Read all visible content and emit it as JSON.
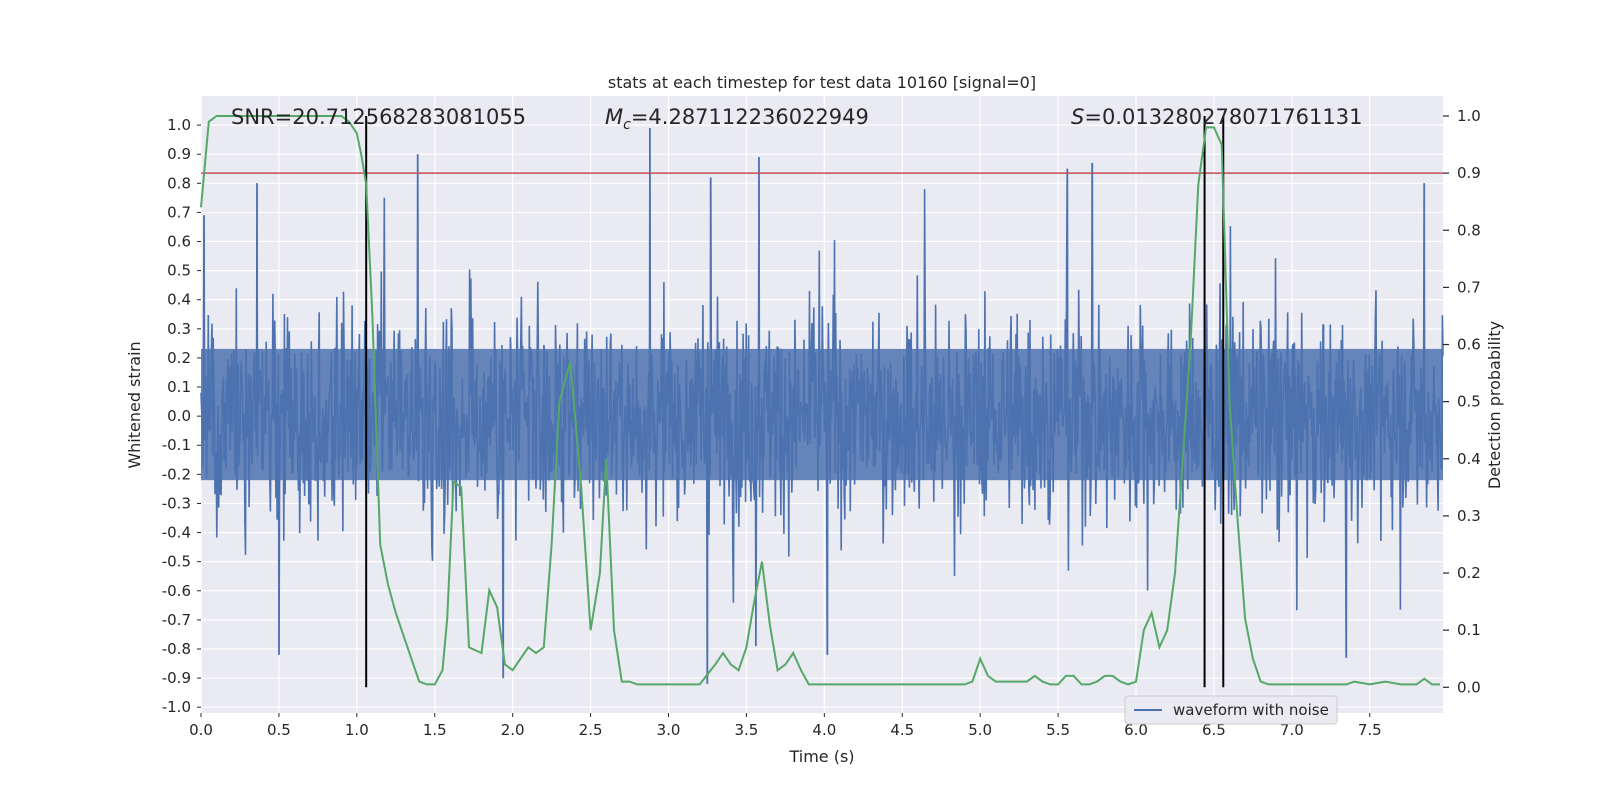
{
  "chart_data": {
    "type": "line",
    "title": "stats at each timestep for test data 10160 [signal=0]",
    "xlabel": "Time (s)",
    "ylabel": "Whitened strain",
    "y2label": "Detection probability",
    "xlim": [
      0.0,
      7.97
    ],
    "ylim": [
      -1.02,
      1.1
    ],
    "y2lim": [
      -0.045,
      1.035
    ],
    "x_ticks": [
      0.0,
      0.5,
      1.0,
      1.5,
      2.0,
      2.5,
      3.0,
      3.5,
      4.0,
      4.5,
      5.0,
      5.5,
      6.0,
      6.5,
      7.0,
      7.5
    ],
    "x_tick_labels": [
      "0.0",
      "0.5",
      "1.0",
      "1.5",
      "2.0",
      "2.5",
      "3.0",
      "3.5",
      "4.0",
      "4.5",
      "5.0",
      "5.5",
      "6.0",
      "6.5",
      "7.0",
      "7.5"
    ],
    "y_ticks": [
      1.0,
      0.9,
      0.8,
      0.7,
      0.6,
      0.5,
      0.4,
      0.3,
      0.2,
      0.1,
      0.0,
      -0.1,
      -0.2,
      -0.3,
      -0.4,
      -0.5,
      -0.6,
      -0.7,
      -0.8,
      -0.9,
      -1.0
    ],
    "y_tick_labels": [
      "1.0",
      "0.9",
      "0.8",
      "0.7",
      "0.6",
      "0.5",
      "0.4",
      "0.3",
      "0.2",
      "0.1",
      "0.0",
      "-0.1",
      "-0.2",
      "-0.3",
      "-0.4",
      "-0.5",
      "-0.6",
      "-0.7",
      "-0.8",
      "-0.9",
      "-1.0"
    ],
    "y2_ticks": [
      1.0,
      0.9,
      0.8,
      0.7,
      0.6,
      0.5,
      0.4,
      0.3,
      0.2,
      0.1,
      0.0
    ],
    "y2_tick_labels": [
      "1.0",
      "0.9",
      "0.8",
      "0.7",
      "0.6",
      "0.5",
      "0.4",
      "0.3",
      "0.2",
      "0.1",
      "0.0"
    ],
    "grid": true,
    "legend": {
      "placement": "lower-right",
      "entries": [
        "waveform with noise"
      ]
    },
    "annotations": {
      "snr": "SNR=20.712568283081055",
      "mc_prefix": "M",
      "mc_sub": "c",
      "mc_value": "=4.287112236022949",
      "s_prefix": "S",
      "s_value": "=0.013280278071761131"
    },
    "threshold": {
      "y2": 0.9,
      "color": "#c44e52"
    },
    "vertical_lines": [
      1.06,
      6.44,
      6.56
    ],
    "vertical_line_range_y2": [
      0.0,
      1.0
    ],
    "series": [
      {
        "name": "waveform with noise",
        "axis": "left",
        "color": "#4c72b0",
        "typical_envelope": [
          -0.4,
          0.42
        ],
        "note_peaks": [
          [
            0.02,
            0.69
          ],
          [
            0.36,
            0.8
          ],
          [
            1.39,
            0.9
          ],
          [
            2.88,
            0.99
          ],
          [
            3.27,
            0.82
          ],
          [
            3.58,
            0.89
          ],
          [
            5.56,
            0.85
          ],
          [
            5.72,
            0.87
          ],
          [
            7.85,
            0.8
          ],
          [
            0.5,
            -0.82
          ],
          [
            1.94,
            -0.9
          ],
          [
            3.25,
            -0.92
          ],
          [
            3.56,
            -0.79
          ],
          [
            4.02,
            -0.82
          ],
          [
            7.35,
            -0.83
          ]
        ]
      },
      {
        "name": "Detection probability",
        "axis": "right",
        "color": "#55a868",
        "x": [
          0.0,
          0.05,
          0.1,
          0.2,
          0.3,
          0.4,
          0.5,
          0.6,
          0.7,
          0.8,
          0.9,
          0.95,
          1.0,
          1.03,
          1.06,
          1.1,
          1.15,
          1.2,
          1.25,
          1.3,
          1.35,
          1.4,
          1.45,
          1.5,
          1.55,
          1.58,
          1.62,
          1.67,
          1.72,
          1.8,
          1.85,
          1.9,
          1.95,
          2.0,
          2.05,
          2.1,
          2.15,
          2.2,
          2.25,
          2.3,
          2.37,
          2.44,
          2.5,
          2.56,
          2.6,
          2.65,
          2.7,
          2.75,
          2.8,
          2.9,
          3.0,
          3.1,
          3.2,
          3.3,
          3.35,
          3.4,
          3.45,
          3.5,
          3.55,
          3.6,
          3.65,
          3.7,
          3.75,
          3.8,
          3.85,
          3.9,
          4.0,
          4.1,
          4.2,
          4.3,
          4.4,
          4.5,
          4.6,
          4.7,
          4.8,
          4.9,
          4.95,
          5.0,
          5.05,
          5.1,
          5.2,
          5.3,
          5.35,
          5.4,
          5.45,
          5.5,
          5.55,
          5.6,
          5.65,
          5.7,
          5.75,
          5.8,
          5.85,
          5.9,
          5.95,
          6.0,
          6.05,
          6.1,
          6.15,
          6.2,
          6.25,
          6.3,
          6.35,
          6.4,
          6.45,
          6.5,
          6.55,
          6.6,
          6.65,
          6.7,
          6.75,
          6.8,
          6.85,
          6.9,
          7.0,
          7.1,
          7.2,
          7.3,
          7.35,
          7.4,
          7.5,
          7.6,
          7.7,
          7.75,
          7.8,
          7.85,
          7.9,
          7.95
        ],
        "values": [
          0.84,
          0.99,
          1.0,
          1.0,
          1.0,
          1.0,
          1.0,
          1.0,
          1.0,
          1.0,
          1.0,
          0.99,
          0.97,
          0.93,
          0.88,
          0.65,
          0.25,
          0.18,
          0.13,
          0.09,
          0.05,
          0.01,
          0.005,
          0.005,
          0.03,
          0.12,
          0.36,
          0.35,
          0.07,
          0.06,
          0.17,
          0.14,
          0.04,
          0.03,
          0.05,
          0.07,
          0.06,
          0.07,
          0.25,
          0.5,
          0.57,
          0.35,
          0.1,
          0.2,
          0.4,
          0.1,
          0.01,
          0.01,
          0.005,
          0.005,
          0.005,
          0.005,
          0.005,
          0.04,
          0.06,
          0.04,
          0.03,
          0.07,
          0.15,
          0.22,
          0.11,
          0.03,
          0.04,
          0.06,
          0.03,
          0.005,
          0.005,
          0.005,
          0.005,
          0.005,
          0.005,
          0.005,
          0.005,
          0.005,
          0.005,
          0.005,
          0.01,
          0.05,
          0.02,
          0.01,
          0.01,
          0.01,
          0.02,
          0.01,
          0.005,
          0.005,
          0.02,
          0.02,
          0.005,
          0.005,
          0.01,
          0.02,
          0.02,
          0.01,
          0.005,
          0.01,
          0.1,
          0.13,
          0.07,
          0.1,
          0.2,
          0.4,
          0.6,
          0.88,
          0.98,
          0.98,
          0.95,
          0.5,
          0.3,
          0.12,
          0.05,
          0.01,
          0.005,
          0.005,
          0.005,
          0.005,
          0.005,
          0.005,
          0.005,
          0.01,
          0.005,
          0.01,
          0.005,
          0.005,
          0.005,
          0.015,
          0.005,
          0.005
        ]
      }
    ]
  }
}
